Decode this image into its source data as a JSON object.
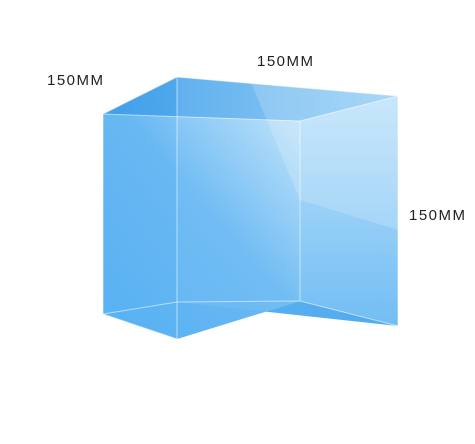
{
  "diagram": {
    "shape": "cube",
    "labels": {
      "depth": "150MM",
      "width": "150MM",
      "height": "150MM"
    },
    "colors": {
      "cube_main": "#4aaaf0",
      "cube_light": "#bfe3fa",
      "cube_dark": "#3a9be8",
      "edge": "#ffffff",
      "text": "#222222",
      "background": "#ffffff"
    }
  }
}
